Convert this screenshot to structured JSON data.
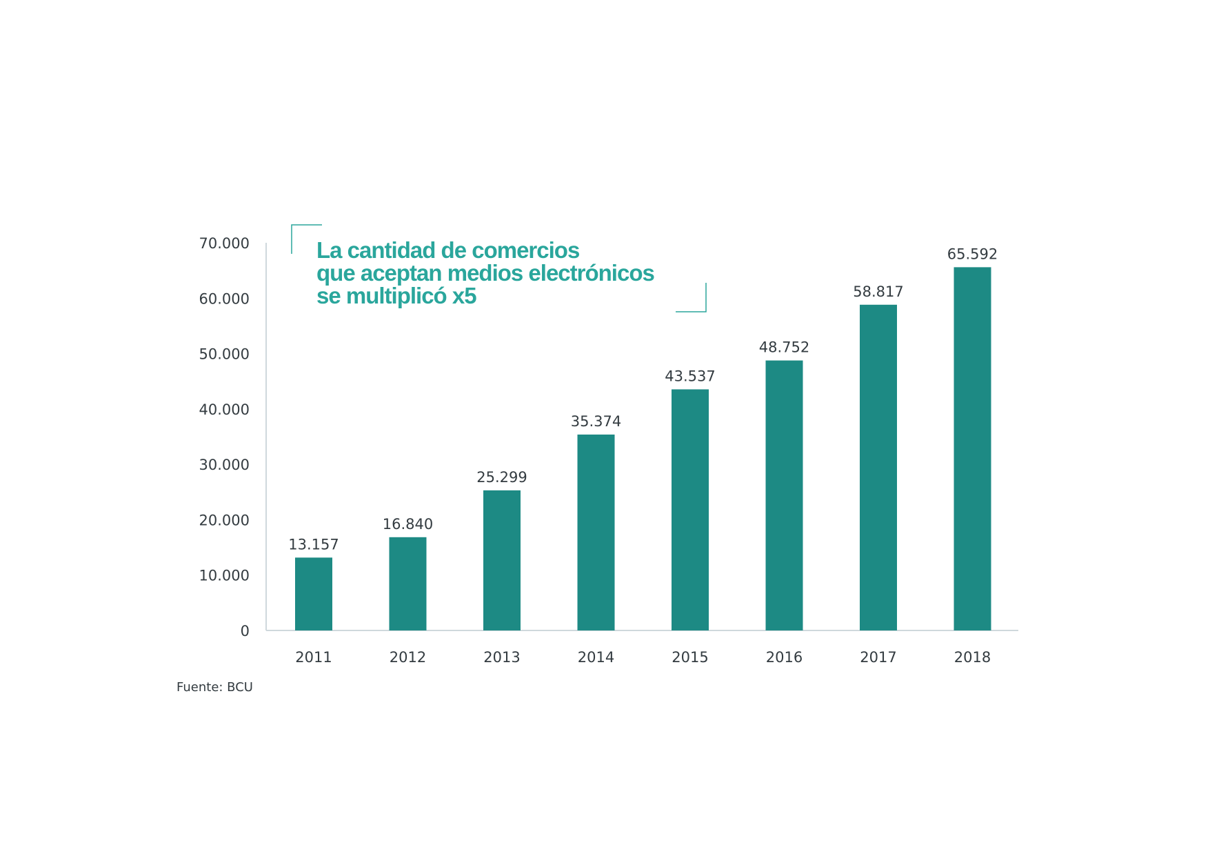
{
  "colors": {
    "bar": "#1d8a84",
    "title": "#2aa69c",
    "axis": "#cfd8dc",
    "text": "#333b40",
    "bracket": "#2aa69c"
  },
  "title_lines": [
    "La cantidad de comercios",
    "que aceptan medios electrónicos",
    "se multiplicó x5"
  ],
  "source": "Fuente: BCU",
  "chart_data": {
    "type": "bar",
    "categories": [
      "2011",
      "2012",
      "2013",
      "2014",
      "2015",
      "2016",
      "2017",
      "2018"
    ],
    "values": [
      13157,
      16840,
      25299,
      35374,
      43537,
      48752,
      58817,
      65592
    ],
    "value_labels": [
      "13.157",
      "16.840",
      "25.299",
      "35.374",
      "43.537",
      "48.752",
      "58.817",
      "65.592"
    ],
    "y_ticks": [
      "0",
      "10.000",
      "20.000",
      "30.000",
      "40.000",
      "50.000",
      "60.000",
      "70.000"
    ],
    "ylim": [
      0,
      70000
    ],
    "title": "La cantidad de comercios que aceptan medios electrónicos se multiplicó x5",
    "xlabel": "",
    "ylabel": "",
    "grid": false,
    "legend": "none"
  }
}
